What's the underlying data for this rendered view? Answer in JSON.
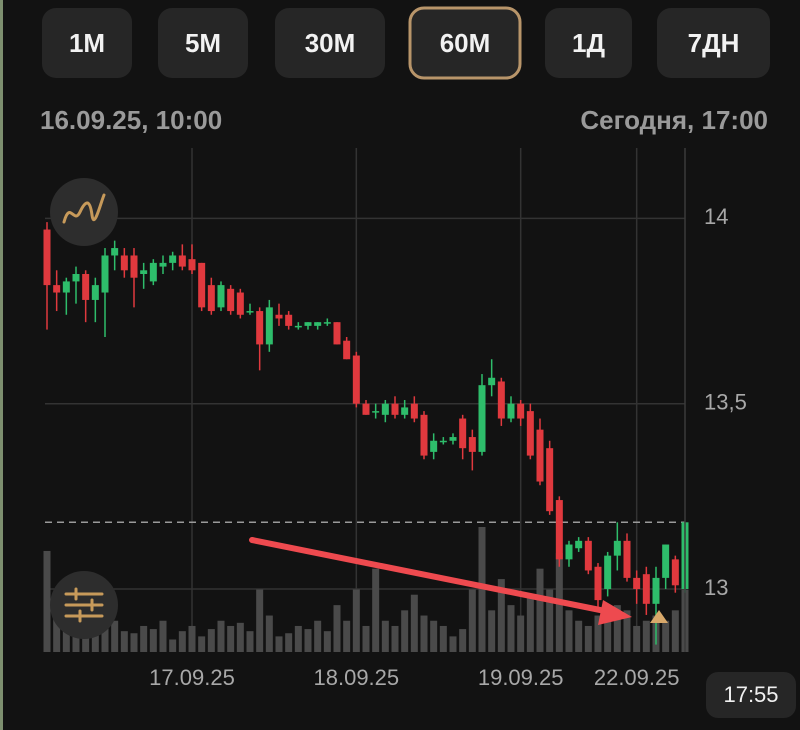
{
  "timeframes": [
    {
      "label": "1М",
      "selected": false
    },
    {
      "label": "5М",
      "selected": false
    },
    {
      "label": "30М",
      "selected": false
    },
    {
      "label": "60М",
      "selected": true
    },
    {
      "label": "1Д",
      "selected": false
    },
    {
      "label": "7ДН",
      "selected": false
    }
  ],
  "range_start": "16.09.25, 10:00",
  "range_end": "Сегодня, 17:00",
  "status_time": "17:55",
  "chart_data": {
    "type": "candlestick",
    "categories": [
      null,
      null,
      null,
      null,
      null,
      null,
      null,
      null,
      null,
      null,
      null,
      null,
      null,
      null,
      null,
      "17.09.25",
      null,
      null,
      null,
      null,
      null,
      null,
      null,
      null,
      null,
      null,
      null,
      null,
      null,
      null,
      null,
      null,
      "18.09.25",
      null,
      null,
      null,
      null,
      null,
      null,
      null,
      null,
      null,
      null,
      null,
      null,
      null,
      null,
      null,
      null,
      "19.09.25",
      null,
      null,
      null,
      null,
      null,
      null,
      null,
      null,
      null,
      null,
      null,
      "22.09.25",
      null,
      null,
      null,
      null,
      null
    ],
    "ohlc": [
      [
        13.97,
        13.99,
        13.7,
        13.82
      ],
      [
        13.82,
        13.86,
        13.75,
        13.8
      ],
      [
        13.8,
        13.84,
        13.74,
        13.83
      ],
      [
        13.83,
        13.87,
        13.77,
        13.85
      ],
      [
        13.85,
        13.86,
        13.72,
        13.78
      ],
      [
        13.78,
        13.84,
        13.72,
        13.82
      ],
      [
        13.8,
        13.92,
        13.68,
        13.9
      ],
      [
        13.9,
        13.94,
        13.86,
        13.92
      ],
      [
        13.9,
        13.92,
        13.84,
        13.86
      ],
      [
        13.9,
        13.92,
        13.76,
        13.84
      ],
      [
        13.85,
        13.88,
        13.81,
        13.86
      ],
      [
        13.83,
        13.89,
        13.82,
        13.88
      ],
      [
        13.87,
        13.9,
        13.85,
        13.88
      ],
      [
        13.88,
        13.91,
        13.86,
        13.9
      ],
      [
        13.9,
        13.93,
        13.86,
        13.87
      ],
      [
        13.89,
        13.93,
        13.85,
        13.86
      ],
      [
        13.88,
        13.88,
        13.75,
        13.76
      ],
      [
        13.82,
        13.84,
        13.74,
        13.75
      ],
      [
        13.76,
        13.83,
        13.75,
        13.82
      ],
      [
        13.81,
        13.82,
        13.74,
        13.75
      ],
      [
        13.8,
        13.81,
        13.73,
        13.74
      ],
      [
        13.75,
        13.77,
        13.74,
        13.75
      ],
      [
        13.75,
        13.76,
        13.59,
        13.66
      ],
      [
        13.66,
        13.78,
        13.64,
        13.76
      ],
      [
        13.74,
        13.77,
        13.71,
        13.73
      ],
      [
        13.74,
        13.75,
        13.7,
        13.71
      ],
      [
        13.71,
        13.72,
        13.7,
        13.71
      ],
      [
        13.71,
        13.72,
        13.7,
        13.72
      ],
      [
        13.71,
        13.72,
        13.7,
        13.72
      ],
      [
        13.72,
        13.73,
        13.71,
        13.72
      ],
      [
        13.72,
        13.72,
        13.66,
        13.66
      ],
      [
        13.67,
        13.68,
        13.62,
        13.62
      ],
      [
        13.63,
        13.64,
        13.49,
        13.5
      ],
      [
        13.5,
        13.51,
        13.47,
        13.47
      ],
      [
        13.48,
        13.5,
        13.46,
        13.48
      ],
      [
        13.47,
        13.51,
        13.45,
        13.5
      ],
      [
        13.5,
        13.52,
        13.46,
        13.47
      ],
      [
        13.47,
        13.51,
        13.46,
        13.49
      ],
      [
        13.5,
        13.52,
        13.45,
        13.46
      ],
      [
        13.47,
        13.48,
        13.35,
        13.36
      ],
      [
        13.37,
        13.42,
        13.35,
        13.4
      ],
      [
        13.4,
        13.41,
        13.39,
        13.4
      ],
      [
        13.4,
        13.42,
        13.39,
        13.41
      ],
      [
        13.46,
        13.47,
        13.35,
        13.38
      ],
      [
        13.41,
        13.43,
        13.32,
        13.37
      ],
      [
        13.37,
        13.58,
        13.36,
        13.55
      ],
      [
        13.55,
        13.62,
        13.52,
        13.57
      ],
      [
        13.56,
        13.57,
        13.44,
        13.46
      ],
      [
        13.46,
        13.52,
        13.45,
        13.5
      ],
      [
        13.5,
        13.51,
        13.44,
        13.46
      ],
      [
        13.48,
        13.5,
        13.35,
        13.36
      ],
      [
        13.43,
        13.46,
        13.28,
        13.29
      ],
      [
        13.38,
        13.4,
        13.2,
        13.21
      ],
      [
        13.24,
        13.25,
        13.06,
        13.08
      ],
      [
        13.08,
        13.13,
        13.06,
        13.12
      ],
      [
        13.11,
        13.14,
        13.1,
        13.13
      ],
      [
        13.13,
        13.14,
        13.04,
        13.05
      ],
      [
        13.06,
        13.07,
        12.95,
        12.97
      ],
      [
        13.0,
        13.1,
        12.98,
        13.09
      ],
      [
        13.09,
        13.18,
        13.05,
        13.13
      ],
      [
        13.13,
        13.15,
        13.02,
        13.03
      ],
      [
        13.03,
        13.05,
        12.96,
        13.0
      ],
      [
        13.04,
        13.06,
        12.93,
        12.96
      ],
      [
        12.96,
        13.06,
        12.85,
        13.03
      ],
      [
        13.03,
        13.12,
        13.0,
        13.12
      ],
      [
        13.08,
        13.09,
        12.99,
        13.01
      ],
      [
        13.0,
        13.18,
        12.99,
        13.18
      ]
    ],
    "volume": [
      97,
      45,
      40,
      30,
      55,
      25,
      45,
      30,
      20,
      18,
      25,
      22,
      30,
      12,
      20,
      25,
      15,
      22,
      30,
      25,
      28,
      20,
      60,
      35,
      15,
      18,
      25,
      22,
      30,
      20,
      45,
      30,
      60,
      25,
      80,
      30,
      25,
      40,
      55,
      35,
      30,
      25,
      15,
      22,
      60,
      120,
      40,
      70,
      45,
      35,
      55,
      80,
      60,
      95,
      40,
      30,
      25,
      35,
      30,
      45,
      40,
      25,
      30,
      35,
      30,
      40,
      60
    ],
    "up_color": "#2ebd6b",
    "down_color": "#e0393e",
    "volume_color": "#4a4a4a",
    "ylim": [
      12.83,
      14.19
    ],
    "yticks": [
      {
        "value": 13,
        "label": "13"
      },
      {
        "value": 13.5,
        "label": "13,5"
      },
      {
        "value": 14,
        "label": "14"
      }
    ],
    "last_price": 13.18,
    "grid": true
  }
}
